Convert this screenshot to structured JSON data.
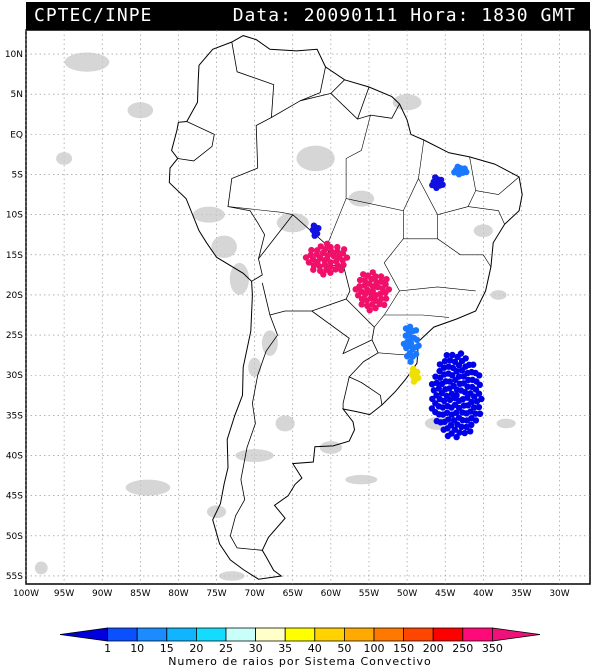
{
  "header": {
    "source": "CPTEC/INPE",
    "datetime": "Data: 20090111 Hora: 1830 GMT"
  },
  "map": {
    "lon_range": [
      -100,
      -26
    ],
    "lat_range": [
      -56,
      13
    ],
    "lat_labels": [
      "10N",
      "5N",
      "EQ",
      "5S",
      "10S",
      "15S",
      "20S",
      "25S",
      "30S",
      "35S",
      "40S",
      "45S",
      "50S",
      "55S"
    ],
    "lat_values": [
      10,
      5,
      0,
      -5,
      -10,
      -15,
      -20,
      -25,
      -30,
      -35,
      -40,
      -45,
      -50,
      -55
    ],
    "lon_labels": [
      "100W",
      "95W",
      "90W",
      "85W",
      "80W",
      "75W",
      "70W",
      "65W",
      "60W",
      "55W",
      "50W",
      "45W",
      "40W",
      "35W",
      "30W"
    ],
    "lon_values": [
      -100,
      -95,
      -90,
      -85,
      -80,
      -75,
      -70,
      -65,
      -60,
      -55,
      -50,
      -45,
      -40,
      -35,
      -30
    ],
    "grid": true
  },
  "lightning_clusters": [
    {
      "name": "cluster-bolivia-north",
      "lon": -62,
      "lat": -12,
      "value_class": "1",
      "color": "#1010e0"
    },
    {
      "name": "cluster-bolivia-central",
      "lon": -60.5,
      "lat": -15.5,
      "value_class": "350",
      "color": "#f0106a"
    },
    {
      "name": "cluster-mato-grosso-sul",
      "lon": -54.5,
      "lat": -19.5,
      "value_class": "350",
      "color": "#f0106a"
    },
    {
      "name": "cluster-parana",
      "lon": -49.5,
      "lat": -26,
      "value_class": "10",
      "color": "#1a78ff"
    },
    {
      "name": "cluster-rs-coast",
      "lon": -49,
      "lat": -30,
      "value_class": "40",
      "color": "#f0e000"
    },
    {
      "name": "cluster-atlantic",
      "lon": -43.5,
      "lat": -32.5,
      "value_class": "1",
      "color": "#0000e8"
    },
    {
      "name": "cluster-maranhao",
      "lon": -46,
      "lat": -6,
      "value_class": "1",
      "color": "#1010e0"
    },
    {
      "name": "cluster-piaui",
      "lon": -43,
      "lat": -4.5,
      "value_class": "10",
      "color": "#1a78ff"
    }
  ],
  "colorbar": {
    "labels": [
      "1",
      "10",
      "15",
      "20",
      "25",
      "30",
      "35",
      "40",
      "50",
      "100",
      "150",
      "200",
      "250",
      "350"
    ],
    "colors": [
      "#0000dc",
      "#0a50ff",
      "#1a8cff",
      "#10b4ff",
      "#14dcff",
      "#c8fff8",
      "#ffffc8",
      "#ffff00",
      "#ffd200",
      "#ffaa00",
      "#ff7800",
      "#ff4600",
      "#ff0000",
      "#ff0a78",
      "#f0107a"
    ],
    "caption": "Numero de raios por Sistema Convectivo"
  }
}
